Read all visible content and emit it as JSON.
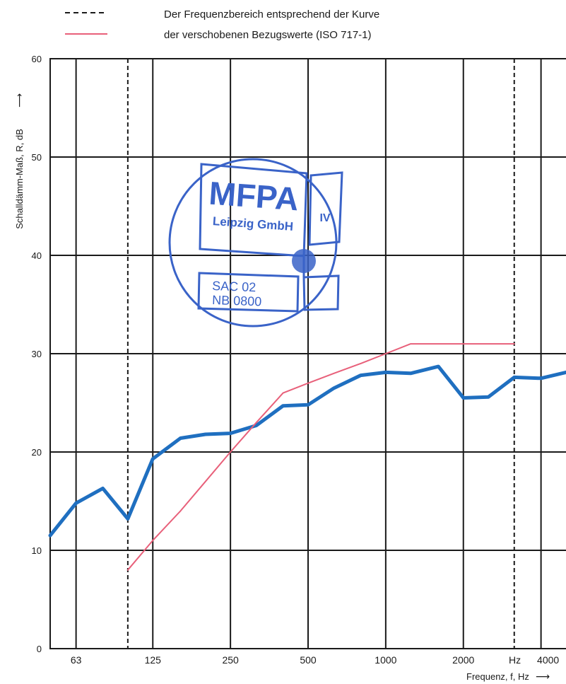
{
  "legend": {
    "entries": [
      {
        "label": "Der Frequenzbereich entsprechend der Kurve",
        "style": "dashed",
        "color": "#1a1a1a"
      },
      {
        "label": "der verschobenen Bezugswerte (ISO 717-1)",
        "style": "solid",
        "color": "#e8607a"
      }
    ]
  },
  "stamp": {
    "color": "#3a63c8",
    "lines": [
      "MFPA",
      "Leipzig GmbH",
      "IV",
      "SAC 02",
      "NB 0800"
    ]
  },
  "chart_data": {
    "type": "line",
    "title": "",
    "ylabel": "Schalldämm-Maß, R, dB",
    "xlabel": "Frequenz, f, Hz",
    "x_unit_label": "Hz",
    "x_scale": "log",
    "xlim": [
      50,
      5000
    ],
    "ylim": [
      0,
      60
    ],
    "y_ticks": [
      0,
      10,
      20,
      30,
      40,
      50,
      60
    ],
    "x_tick_labels": [
      {
        "f": 63,
        "label": "63"
      },
      {
        "f": 125,
        "label": "125"
      },
      {
        "f": 250,
        "label": "250"
      },
      {
        "f": 500,
        "label": "500"
      },
      {
        "f": 1000,
        "label": "1000"
      },
      {
        "f": 2000,
        "label": "2000"
      },
      {
        "f": 4000,
        "label": "4000"
      }
    ],
    "grid": true,
    "frequency_range": [
      100,
      3150
    ],
    "series": [
      {
        "style": "measured",
        "color": "#1f6fc0",
        "points": [
          [
            50,
            11.5
          ],
          [
            63,
            14.8
          ],
          [
            80,
            16.3
          ],
          [
            100,
            13.2
          ],
          [
            125,
            19.3
          ],
          [
            160,
            21.4
          ],
          [
            200,
            21.8
          ],
          [
            250,
            21.9
          ],
          [
            315,
            22.7
          ],
          [
            400,
            24.7
          ],
          [
            500,
            24.8
          ],
          [
            630,
            26.5
          ],
          [
            800,
            27.8
          ],
          [
            1000,
            28.1
          ],
          [
            1250,
            28.0
          ],
          [
            1600,
            28.7
          ],
          [
            2000,
            25.5
          ],
          [
            2500,
            25.6
          ],
          [
            3150,
            27.6
          ],
          [
            4000,
            27.5
          ],
          [
            5000,
            28.1
          ]
        ]
      },
      {
        "style": "reference",
        "color": "#e8607a",
        "points": [
          [
            100,
            8
          ],
          [
            125,
            11
          ],
          [
            160,
            14
          ],
          [
            200,
            17
          ],
          [
            250,
            20
          ],
          [
            315,
            23
          ],
          [
            400,
            26
          ],
          [
            500,
            27
          ],
          [
            630,
            28
          ],
          [
            800,
            29
          ],
          [
            1000,
            30
          ],
          [
            1250,
            31
          ],
          [
            1600,
            31
          ],
          [
            2000,
            31
          ],
          [
            2500,
            31
          ],
          [
            3150,
            31
          ]
        ]
      }
    ]
  }
}
